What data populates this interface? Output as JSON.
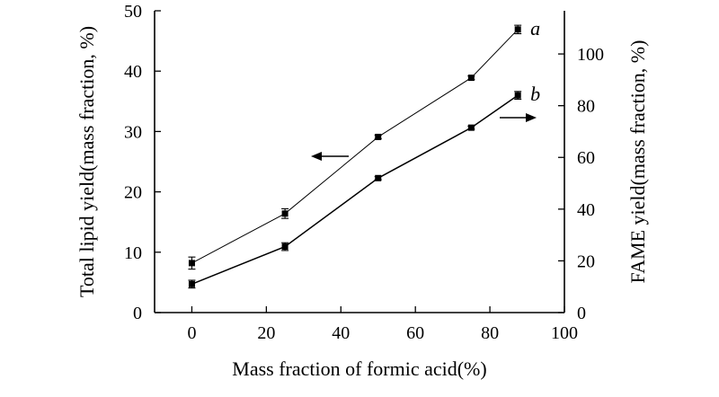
{
  "chart_data": {
    "type": "line",
    "xlabel": "Mass fraction of formic acid(%)",
    "ylabel_left": "Total lipid yield(mass fraction, %)",
    "ylabel_right": "FAME yield(mass fraction, %)",
    "xlim": [
      -10,
      100
    ],
    "ylim_left": [
      0,
      50
    ],
    "ylim_right": [
      0,
      116.7
    ],
    "xticks": [
      0,
      20,
      40,
      60,
      80,
      100
    ],
    "yticks_left": [
      0,
      10,
      20,
      30,
      40,
      50
    ],
    "yticks_right": [
      0,
      20,
      40,
      60,
      80,
      100
    ],
    "grid": false,
    "series": [
      {
        "label": "a",
        "axis": "left",
        "x": [
          0,
          25,
          50,
          75,
          87.5
        ],
        "values": [
          8.2,
          16.4,
          29.1,
          38.9,
          46.9
        ],
        "errors": [
          1.0,
          0.8,
          0.3,
          0.3,
          0.7
        ],
        "arrow_direction": "left"
      },
      {
        "label": "b",
        "axis": "right",
        "x": [
          0,
          25,
          50,
          75,
          87.5
        ],
        "values": [
          11,
          25.5,
          52,
          71.5,
          84
        ],
        "errors": [
          1.5,
          1.5,
          0.6,
          0.6,
          1.5
        ],
        "arrow_direction": "right"
      }
    ]
  }
}
